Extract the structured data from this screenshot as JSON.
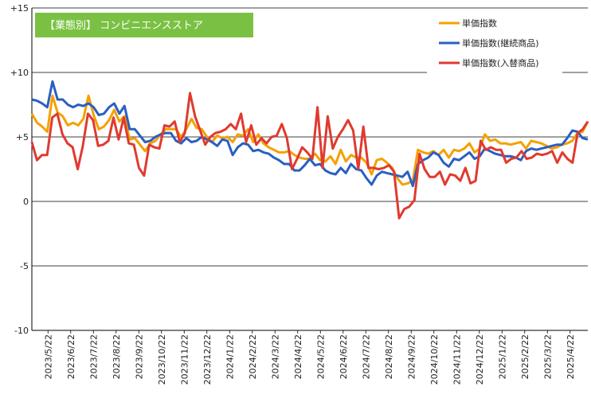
{
  "chart_data": {
    "type": "line",
    "title": "【業態別】 コンビニエンスストア",
    "title_bg": "#7ac143",
    "ylim": [
      -10,
      15
    ],
    "yticks": [
      {
        "value": 15,
        "label": "+15"
      },
      {
        "value": 10,
        "label": "+10"
      },
      {
        "value": 5,
        "label": "+5"
      },
      {
        "value": 0,
        "label": "0"
      },
      {
        "value": -5,
        "label": "-5"
      },
      {
        "value": -10,
        "label": "-10"
      }
    ],
    "grid": "horizontal",
    "legend_position": "top-right",
    "xlabels": [
      "2023/5/22",
      "2023/6/22",
      "2023/7/22",
      "2023/8/22",
      "2023/9/22",
      "2023/10/22",
      "2023/11/22",
      "2023/12/22",
      "2024/1/22",
      "2024/2/22",
      "2024/3/22",
      "2024/4/22",
      "2024/5/22",
      "2024/6/22",
      "2024/7/22",
      "2024/8/22",
      "2024/9/22",
      "2024/10/22",
      "2024/11/22",
      "2024/12/22",
      "2025/1/22",
      "2025/2/22",
      "2025/3/22",
      "2025/4/22"
    ],
    "series": [
      {
        "name": "単価指数",
        "color": "#f5a000",
        "values": [
          6.8,
          6.1,
          5.8,
          5.4,
          8.2,
          6.9,
          6.6,
          5.9,
          6.1,
          5.9,
          6.4,
          8.2,
          6.7,
          5.6,
          5.8,
          6.3,
          7.1,
          6.2,
          6.6,
          4.8,
          4.9,
          4.4,
          3.9,
          4.5,
          4.7,
          5.2,
          5.6,
          5.6,
          5.6,
          5.0,
          5.6,
          6.4,
          5.7,
          5.6,
          5.0,
          4.6,
          5.1,
          4.9,
          5.0,
          4.6,
          5.2,
          5.1,
          5.6,
          4.6,
          5.2,
          4.5,
          4.2,
          4.0,
          3.8,
          3.8,
          3.9,
          3.6,
          3.4,
          3.3,
          3.3,
          3.7,
          3.2,
          3.1,
          3.5,
          2.9,
          4.0,
          3.1,
          3.6,
          3.4,
          3.4,
          3.0,
          2.1,
          3.2,
          3.3,
          3.0,
          2.6,
          1.8,
          1.3,
          1.4,
          1.6,
          4.0,
          3.8,
          3.7,
          3.9,
          3.6,
          4.0,
          3.4,
          4.0,
          3.9,
          4.1,
          4.5,
          3.8,
          4.1,
          5.2,
          4.7,
          4.8,
          4.5,
          4.5,
          4.4,
          4.5,
          4.6,
          4.1,
          4.7,
          4.6,
          4.5,
          4.3,
          4.1,
          4.2,
          4.4,
          4.5,
          4.7,
          5.3,
          5.4,
          6.2
        ]
      },
      {
        "name": "単価指数(継続商品)",
        "color": "#2a5fc1",
        "values": [
          7.9,
          7.8,
          7.6,
          7.3,
          9.3,
          7.9,
          7.9,
          7.5,
          7.3,
          7.5,
          7.4,
          7.6,
          7.3,
          6.7,
          6.8,
          7.3,
          7.6,
          6.8,
          7.4,
          5.6,
          5.6,
          5.1,
          4.6,
          4.7,
          5.0,
          5.2,
          5.3,
          5.3,
          4.7,
          4.5,
          4.9,
          4.6,
          4.7,
          5.0,
          4.8,
          4.6,
          4.3,
          4.8,
          4.7,
          3.6,
          4.2,
          4.5,
          4.4,
          3.9,
          4.0,
          3.8,
          3.7,
          3.4,
          3.2,
          2.9,
          2.9,
          2.4,
          2.4,
          2.8,
          3.3,
          2.8,
          2.9,
          2.4,
          2.2,
          2.1,
          2.6,
          2.2,
          2.9,
          2.5,
          2.4,
          1.8,
          1.3,
          2.0,
          2.3,
          2.2,
          2.1,
          2.0,
          1.9,
          2.3,
          1.2,
          2.9,
          3.2,
          3.4,
          3.8,
          3.6,
          3.0,
          2.7,
          3.3,
          3.2,
          3.5,
          3.8,
          3.3,
          3.5,
          4.1,
          3.9,
          3.7,
          3.6,
          3.5,
          3.5,
          3.4,
          3.2,
          3.9,
          4.1,
          4.0,
          4.1,
          4.2,
          4.3,
          4.4,
          4.4,
          4.9,
          5.5,
          5.4,
          4.9,
          4.8
        ]
      },
      {
        "name": "単価指数(入替商品)",
        "color": "#e03a2f",
        "values": [
          4.6,
          3.2,
          3.6,
          3.6,
          6.5,
          6.8,
          5.2,
          4.5,
          4.2,
          2.5,
          4.3,
          6.8,
          6.3,
          4.3,
          4.4,
          4.7,
          6.5,
          4.8,
          6.5,
          4.5,
          4.4,
          2.6,
          2.0,
          4.4,
          4.2,
          4.1,
          5.9,
          5.8,
          6.2,
          4.6,
          5.3,
          8.4,
          6.6,
          5.5,
          4.4,
          5.0,
          5.3,
          5.4,
          5.6,
          6.0,
          5.6,
          6.8,
          4.6,
          5.9,
          4.4,
          4.9,
          4.5,
          5.0,
          5.1,
          6.0,
          4.9,
          2.5,
          3.3,
          4.2,
          3.8,
          3.3,
          7.3,
          2.6,
          6.6,
          4.1,
          5.0,
          5.6,
          6.3,
          5.5,
          2.5,
          5.8,
          2.6,
          2.6,
          2.5,
          2.6,
          2.8,
          2.3,
          -1.3,
          -0.6,
          -0.4,
          0.1,
          3.7,
          2.5,
          1.9,
          1.9,
          2.3,
          1.3,
          2.1,
          2.0,
          1.6,
          2.6,
          1.4,
          1.6,
          4.7,
          4.0,
          4.2,
          4.0,
          4.0,
          3.0,
          3.3,
          3.4,
          3.9,
          3.3,
          3.4,
          3.7,
          3.6,
          3.7,
          3.9,
          3.0,
          3.8,
          3.3,
          3.0,
          5.3,
          5.6,
          6.2
        ]
      }
    ]
  }
}
